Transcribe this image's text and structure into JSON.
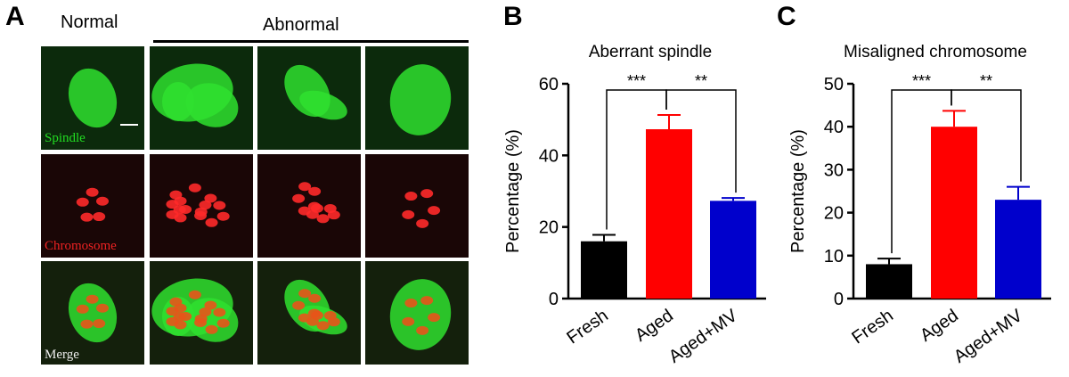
{
  "panel_a": {
    "letter": "A",
    "header_normal": "Normal",
    "header_abnormal": "Abnormal",
    "row_labels": [
      "Spindle",
      "Chromosome",
      "Merge"
    ],
    "row_label_colors": [
      "#22dd22",
      "#ee2222",
      "#eeeeee"
    ],
    "columns": [
      {
        "shape": "oval"
      },
      {
        "shape": "mesh"
      },
      {
        "shape": "fan"
      },
      {
        "shape": "ring"
      }
    ]
  },
  "chart_data": [
    {
      "letter": "B",
      "type": "bar",
      "title": "Aberrant spindle",
      "ylabel": "Percentage (%)",
      "xlabel": "",
      "ylim": [
        0,
        60
      ],
      "yticks": [
        0,
        20,
        40,
        60
      ],
      "categories": [
        "Fresh",
        "Aged",
        "Aged+MV"
      ],
      "values": [
        16,
        47.3,
        27.3
      ],
      "errors": [
        1.8,
        4.0,
        0.8
      ],
      "colors": [
        "#000000",
        "#ff0000",
        "#0000cc"
      ],
      "significance": [
        {
          "from": 0,
          "to": 1,
          "label": "***"
        },
        {
          "from": 1,
          "to": 2,
          "label": "**"
        }
      ]
    },
    {
      "letter": "C",
      "type": "bar",
      "title": "Misaligned chromosome",
      "ylabel": "Percentage (%)",
      "xlabel": "",
      "ylim": [
        0,
        50
      ],
      "yticks": [
        0,
        10,
        20,
        30,
        40,
        50
      ],
      "categories": [
        "Fresh",
        "Aged",
        "Aged+MV"
      ],
      "values": [
        8,
        40,
        23
      ],
      "errors": [
        1.3,
        3.7,
        3.0
      ],
      "colors": [
        "#000000",
        "#ff0000",
        "#0000cc"
      ],
      "significance": [
        {
          "from": 0,
          "to": 1,
          "label": "***"
        },
        {
          "from": 1,
          "to": 2,
          "label": "**"
        }
      ]
    }
  ]
}
